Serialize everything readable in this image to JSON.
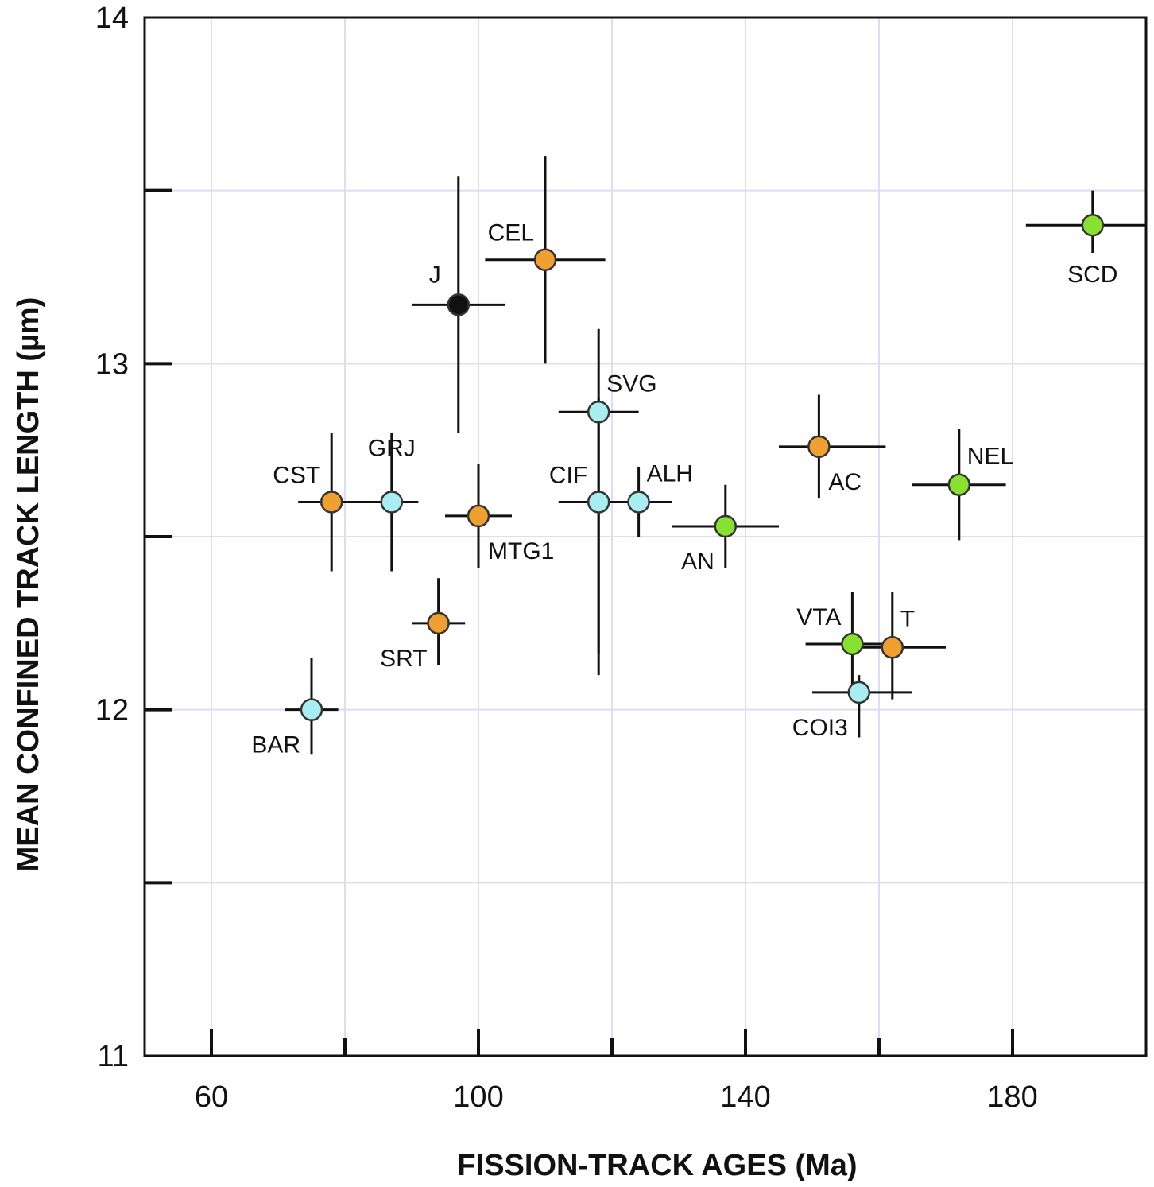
{
  "chart_data": {
    "type": "scatter",
    "xlabel": "FISSION-TRACK AGES (Ma)",
    "ylabel": "MEAN CONFINED TRACK LENGTH (µm)",
    "xlim": [
      50,
      200
    ],
    "ylim": [
      11,
      14
    ],
    "x_ticks": [
      60,
      100,
      140,
      180
    ],
    "x_tick_labels": [
      "60",
      "100",
      "140",
      "180"
    ],
    "y_ticks": [
      11,
      12,
      13,
      14
    ],
    "y_tick_labels": [
      "11",
      "12",
      "13",
      "14"
    ],
    "grid": true,
    "colors": {
      "orange": "#f0a030",
      "cyan": "#a8eef0",
      "green": "#88e030",
      "black": "#111111",
      "grid": "#dcdcf4"
    },
    "points": [
      {
        "label": "SCD",
        "x": 192,
        "y": 13.4,
        "xerr": [
          182,
          200
        ],
        "yerr": [
          13.32,
          13.5
        ],
        "color": "green",
        "label_pos": "below"
      },
      {
        "label": "CEL",
        "x": 110,
        "y": 13.3,
        "xerr": [
          101,
          119
        ],
        "yerr": [
          13.0,
          13.6
        ],
        "color": "orange",
        "label_pos": "upper-left"
      },
      {
        "label": "J",
        "x": 97,
        "y": 13.17,
        "xerr": [
          90,
          104
        ],
        "yerr": [
          12.8,
          13.54
        ],
        "color": "black",
        "label_pos": "left"
      },
      {
        "label": "SVG",
        "x": 118,
        "y": 12.86,
        "xerr": [
          112,
          124
        ],
        "yerr": [
          12.16,
          13.1
        ],
        "color": "cyan",
        "label_pos": "upper-right"
      },
      {
        "label": "AC",
        "x": 151,
        "y": 12.76,
        "xerr": [
          145,
          161
        ],
        "yerr": [
          12.61,
          12.91
        ],
        "color": "orange",
        "label_pos": "lower-right"
      },
      {
        "label": "NEL",
        "x": 172,
        "y": 12.65,
        "xerr": [
          165,
          179
        ],
        "yerr": [
          12.49,
          12.81
        ],
        "color": "green",
        "label_pos": "upper-right"
      },
      {
        "label": "CST",
        "x": 78,
        "y": 12.6,
        "xerr": [
          73,
          83
        ],
        "yerr": [
          12.4,
          12.8
        ],
        "color": "orange",
        "label_pos": "upper-left"
      },
      {
        "label": "GRJ",
        "x": 87,
        "y": 12.6,
        "xerr": [
          82,
          91
        ],
        "yerr": [
          12.4,
          12.8
        ],
        "color": "cyan",
        "label_pos": "above"
      },
      {
        "label": "CIF",
        "x": 118,
        "y": 12.6,
        "xerr": [
          112,
          124
        ],
        "yerr": [
          12.1,
          12.9
        ],
        "color": "cyan",
        "label_pos": "upper-left"
      },
      {
        "label": "ALH",
        "x": 124,
        "y": 12.6,
        "xerr": [
          119,
          129
        ],
        "yerr": [
          12.5,
          12.7
        ],
        "color": "cyan",
        "label_pos": "upper-right"
      },
      {
        "label": "MTG1",
        "x": 100,
        "y": 12.56,
        "xerr": [
          95,
          105
        ],
        "yerr": [
          12.41,
          12.71
        ],
        "color": "orange",
        "label_pos": "lower-right"
      },
      {
        "label": "AN",
        "x": 137,
        "y": 12.53,
        "xerr": [
          129,
          145
        ],
        "yerr": [
          12.41,
          12.65
        ],
        "color": "green",
        "label_pos": "lower-left"
      },
      {
        "label": "SRT",
        "x": 94,
        "y": 12.25,
        "xerr": [
          90,
          98
        ],
        "yerr": [
          12.13,
          12.38
        ],
        "color": "orange",
        "label_pos": "lower-left"
      },
      {
        "label": "VTA",
        "x": 156,
        "y": 12.19,
        "xerr": [
          149,
          163
        ],
        "yerr": [
          12.04,
          12.34
        ],
        "color": "green",
        "label_pos": "upper-left"
      },
      {
        "label": "T",
        "x": 162,
        "y": 12.18,
        "xerr": [
          157,
          170
        ],
        "yerr": [
          12.03,
          12.34
        ],
        "color": "orange",
        "label_pos": "upper-right"
      },
      {
        "label": "COI3",
        "x": 157,
        "y": 12.05,
        "xerr": [
          150,
          165
        ],
        "yerr": [
          11.92,
          12.1
        ],
        "color": "cyan",
        "label_pos": "lower-left"
      },
      {
        "label": "BAR",
        "x": 75,
        "y": 12.0,
        "xerr": [
          71,
          79
        ],
        "yerr": [
          11.87,
          12.15
        ],
        "color": "cyan",
        "label_pos": "lower-left"
      }
    ]
  }
}
